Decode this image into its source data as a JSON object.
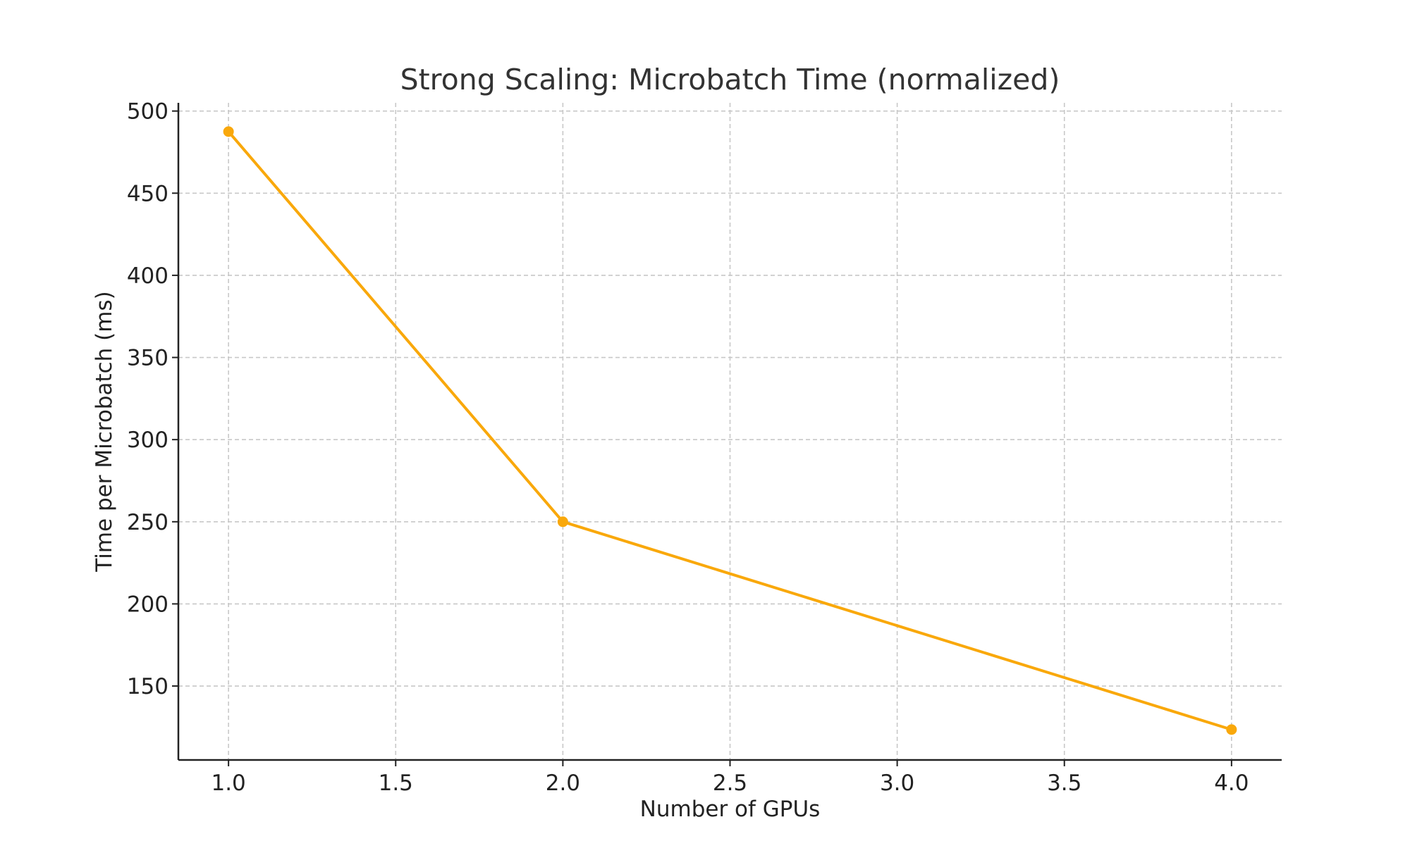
{
  "chart_data": {
    "type": "line",
    "title": "Strong Scaling: Microbatch Time (normalized)",
    "xlabel": "Number of GPUs",
    "ylabel": "Time per Microbatch (ms)",
    "xlim": [
      0.85,
      4.15
    ],
    "ylim": [
      105,
      505
    ],
    "xticks": [
      1.0,
      1.5,
      2.0,
      2.5,
      3.0,
      3.5,
      4.0
    ],
    "xtick_labels": [
      "1.0",
      "1.5",
      "2.0",
      "2.5",
      "3.0",
      "3.5",
      "4.0"
    ],
    "yticks": [
      150,
      200,
      250,
      300,
      350,
      400,
      450,
      500
    ],
    "ytick_labels": [
      "150",
      "200",
      "250",
      "300",
      "350",
      "400",
      "450",
      "500"
    ],
    "grid": true,
    "series": [
      {
        "x": [
          1,
          2,
          4
        ],
        "y": [
          487.5,
          250,
          123.5
        ],
        "color": "#F9A80B",
        "marker": "circle"
      }
    ]
  }
}
